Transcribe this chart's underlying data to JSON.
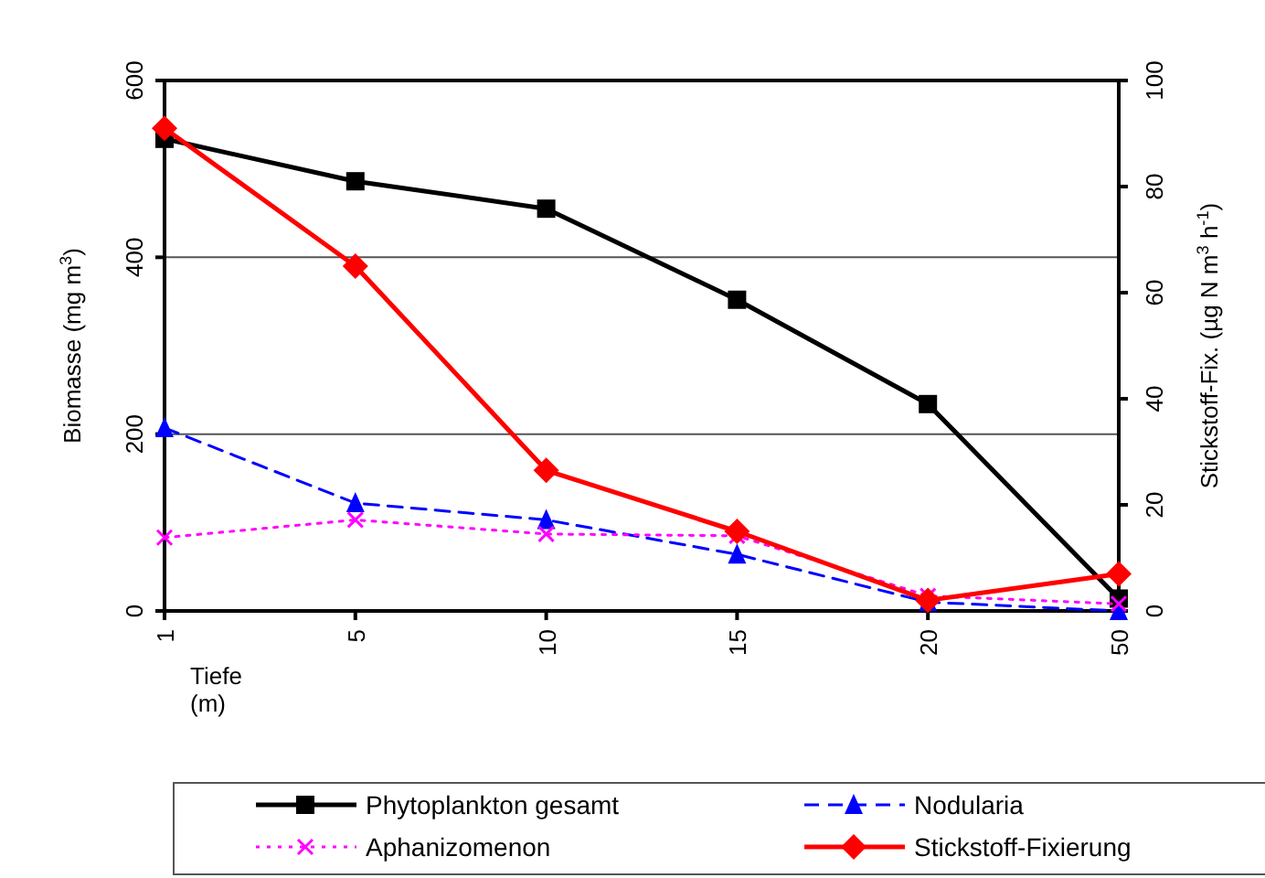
{
  "chart_data": {
    "type": "line",
    "xlabel": "Tiefe (m)",
    "ylabel": "Biomasse (mg m$^{3}$)",
    "y2label": "Stickstoff-Fix. (µg N m$^{3}$ h$^{-1}$)",
    "categories": [
      "1",
      "5",
      "10",
      "15",
      "20",
      "50"
    ],
    "ylim": [
      0,
      600
    ],
    "yticks": [
      0,
      200,
      400,
      600
    ],
    "y2lim": [
      0,
      100
    ],
    "y2ticks": [
      0,
      20,
      40,
      60,
      80,
      100
    ],
    "grid": "y",
    "legend": "bottom",
    "series": [
      {
        "name": "Phytoplankton gesamt",
        "color": "#000000",
        "marker": "square",
        "line_style": "solid",
        "values": [
          534,
          486,
          455,
          352,
          234,
          14
        ]
      },
      {
        "name": "Nodularia",
        "color": "#0000ff",
        "marker": "triangle",
        "line_style": "dashed",
        "values": [
          207,
          122,
          103,
          64,
          10,
          0
        ]
      },
      {
        "name": "Aphanizomenon",
        "color": "#ff00ff",
        "marker": "cross",
        "line_style": "dotted",
        "values": [
          83,
          103,
          87,
          85,
          17,
          8
        ]
      },
      {
        "name": "Stickstoff-Fixierung",
        "color": "#ff0000",
        "marker": "diamond",
        "line_style": "solid",
        "axis": "y2",
        "values": [
          91,
          65,
          26.5,
          15,
          2,
          7
        ]
      }
    ]
  }
}
